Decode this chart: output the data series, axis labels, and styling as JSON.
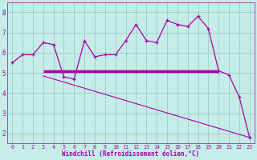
{
  "xlabel": "Windchill (Refroidissement éolien,°C)",
  "background_color": "#c5ece6",
  "line_color": "#aa00aa",
  "grid_color": "#99cccc",
  "hours": [
    0,
    1,
    2,
    3,
    4,
    5,
    6,
    7,
    8,
    9,
    10,
    11,
    12,
    13,
    14,
    15,
    16,
    17,
    18,
    19,
    20,
    21,
    22,
    23
  ],
  "windchill": [
    5.5,
    5.9,
    5.9,
    6.5,
    6.4,
    4.8,
    4.7,
    6.6,
    5.8,
    5.9,
    5.9,
    6.6,
    7.4,
    6.6,
    6.5,
    7.6,
    7.4,
    7.3,
    7.8,
    7.2,
    5.1,
    4.9,
    3.8,
    1.8
  ],
  "hline_y": 5.1,
  "hline_xstart": 3,
  "hline_xend": 20,
  "hline2_y": 5.05,
  "hline2_xstart": 3,
  "hline2_xend": 20,
  "trend_x_start": 3,
  "trend_x_end": 23,
  "trend_y_start": 4.85,
  "trend_y_end": 1.8,
  "ylim": [
    1.5,
    8.5
  ],
  "xlim": [
    -0.5,
    23.5
  ],
  "yticks": [
    2,
    3,
    4,
    5,
    6,
    7,
    8
  ],
  "xtick_labels": [
    "0",
    "1",
    "2",
    "3",
    "4",
    "5",
    "6",
    "7",
    "8",
    "9",
    "10",
    "11",
    "12",
    "13",
    "14",
    "15",
    "16",
    "17",
    "18",
    "19",
    "20",
    "21",
    "22",
    "23"
  ]
}
